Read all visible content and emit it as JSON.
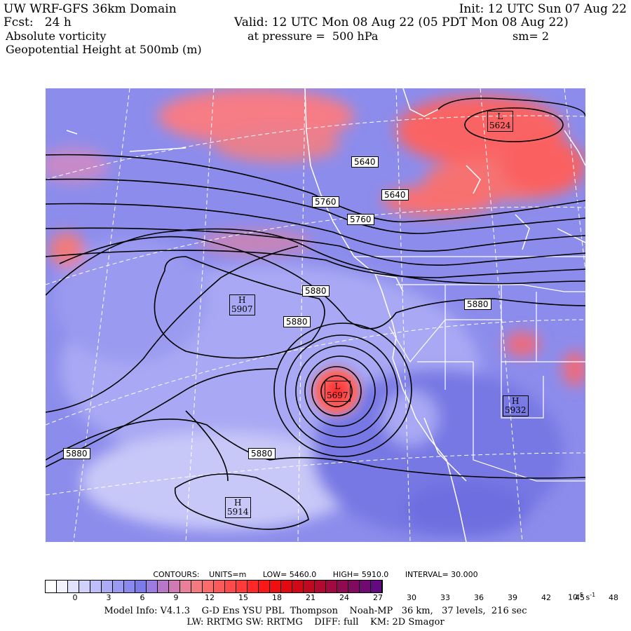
{
  "header": {
    "title": "UW WRF-GFS 36km Domain",
    "init": "Init: 12 UTC Sun 07 Aug 22",
    "fcst": "Fcst:   24 h",
    "valid": "Valid: 12 UTC Mon 08 Aug 22 (05 PDT Mon 08 Aug 22)",
    "field1": "Absolute vorticity",
    "pressure": "at pressure =  500 hPa",
    "smooth": "sm= 2",
    "field2": "Geopotential Height at 500mb (m)"
  },
  "contour_labels": [
    "5640",
    "5640",
    "5760",
    "5760",
    "5880",
    "5880",
    "5880",
    "5880",
    "5880"
  ],
  "pressure_centers": [
    {
      "type": "L",
      "value": "5624"
    },
    {
      "type": "H",
      "value": "5907"
    },
    {
      "type": "L",
      "value": "5697"
    },
    {
      "type": "H",
      "value": "5932"
    },
    {
      "type": "H",
      "value": "5914"
    }
  ],
  "contours_info": {
    "label": "CONTOURS:",
    "units": "UNITS=m",
    "low": "LOW=   5460.0",
    "high": "HIGH=   5910.0",
    "interval": "INTERVAL=    30.000"
  },
  "colorbar": {
    "ticks": [
      "0",
      "3",
      "6",
      "9",
      "12",
      "15",
      "18",
      "21",
      "24",
      "27",
      "30",
      "33",
      "36",
      "39",
      "42",
      "45",
      "48"
    ],
    "units_base": "10",
    "units_exp": "-5",
    "units_tail": " s",
    "units_tail_exp": "-1",
    "colors": [
      "#ffffff",
      "#f2f2fe",
      "#e2e2fc",
      "#d0d0fb",
      "#bebefa",
      "#acacf6",
      "#9a9af2",
      "#8a8aee",
      "#7c7ce8",
      "#9c7ce0",
      "#b878c8",
      "#d07ab4",
      "#e8809a",
      "#f47a82",
      "#fa6c6c",
      "#fc5a5a",
      "#fe4a4a",
      "#ff3a3a",
      "#ff2828",
      "#f81818",
      "#ee1010",
      "#e00a10",
      "#d00818",
      "#c00820",
      "#b00a30",
      "#a00a40",
      "#900a50",
      "#800a60",
      "#700a70",
      "#640a80"
    ]
  },
  "footer": {
    "model_info": "Model Info: V4.1.3    G-D Ens YSU PBL  Thompson    Noah-MP   36 km,   37 levels,  216 sec",
    "physics": "LW: RRTMG SW: RRTMG    DIFF: full    KM: 2D Smagor"
  }
}
